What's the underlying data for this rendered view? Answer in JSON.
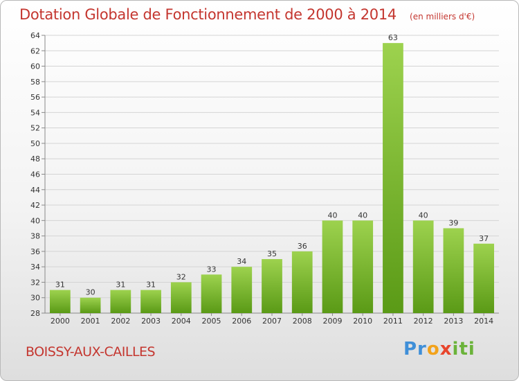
{
  "chart_data": {
    "type": "bar",
    "title": "Dotation Globale de Fonctionnement de 2000 à 2014",
    "subtitle": "(en milliers d'€)",
    "categories": [
      "2000",
      "2001",
      "2002",
      "2003",
      "2004",
      "2005",
      "2006",
      "2007",
      "2008",
      "2009",
      "2010",
      "2011",
      "2012",
      "2013",
      "2014"
    ],
    "values": [
      31,
      30,
      31,
      31,
      32,
      33,
      34,
      35,
      36,
      40,
      40,
      63,
      40,
      39,
      37
    ],
    "ylim": [
      28,
      64
    ],
    "yticks": [
      28,
      30,
      32,
      34,
      36,
      38,
      40,
      42,
      44,
      46,
      48,
      50,
      52,
      54,
      56,
      58,
      60,
      62,
      64
    ],
    "grid": true,
    "legend": "none",
    "bar_color": "#7cbf2e",
    "bar_color_light": "#9dd24e",
    "bar_color_dark": "#5a9a16",
    "label_color": "#333333",
    "grid_color": "#d4d4d4"
  },
  "footer": {
    "commune": "BOISSY-AUX-CAILLES"
  },
  "logo": {
    "parts": [
      "Pr",
      "o",
      "x",
      "iti"
    ]
  },
  "colors": {
    "title": "#c4362f"
  }
}
